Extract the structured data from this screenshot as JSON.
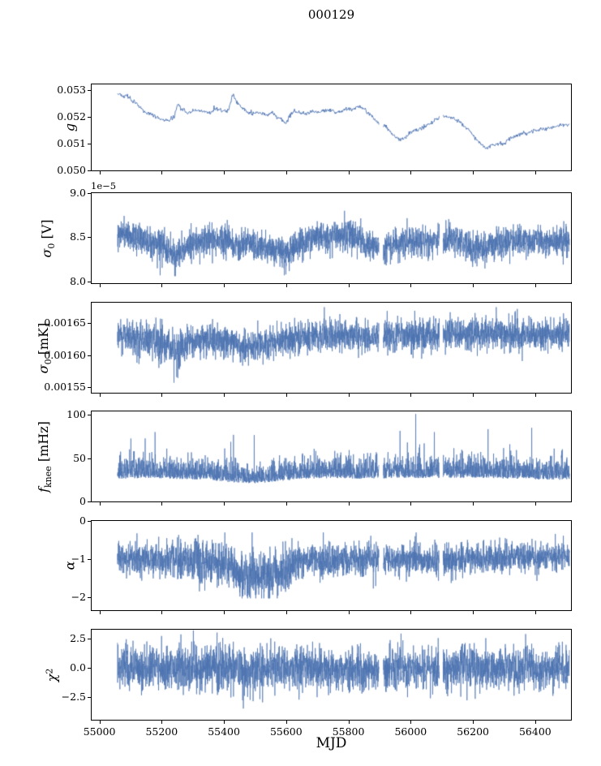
{
  "title": "000129",
  "xlabel": "MJD",
  "chart_data": {
    "type": "line",
    "line_color": "#4c72b0",
    "x_range": [
      54975,
      56515
    ],
    "x_data_range": [
      55058,
      56510
    ],
    "x_ticks": [
      55000,
      55200,
      55400,
      55600,
      55800,
      56000,
      56200,
      56400
    ],
    "x_tick_labels": [
      "55000",
      "55200",
      "55400",
      "55600",
      "55800",
      "56000",
      "56200",
      "56400"
    ],
    "gaps": [
      [
        55898,
        55912
      ],
      [
        56092,
        56104
      ]
    ],
    "panels": [
      {
        "id": "g",
        "ylabel": "g",
        "ylabel_parts": [
          {
            "t": "g",
            "style": "ital"
          }
        ],
        "ylim": [
          0.05,
          0.0532
        ],
        "yticks": [
          "0.050",
          "0.051",
          "0.052",
          "0.053"
        ],
        "ytick_values": [
          0.05,
          0.051,
          0.052,
          0.053
        ],
        "offset_text": "",
        "points": 900,
        "line_width": 0.9,
        "dist": "normal",
        "trend": {
          "x": [
            55060,
            55075,
            55090,
            55105,
            55120,
            55135,
            55150,
            55165,
            55180,
            55200,
            55220,
            55240,
            55252,
            55265,
            55280,
            55300,
            55320,
            55340,
            55355,
            55370,
            55385,
            55400,
            55415,
            55428,
            55438,
            55450,
            55465,
            55480,
            55500,
            55520,
            55540,
            55555,
            55570,
            55585,
            55600,
            55612,
            55625,
            55640,
            55660,
            55680,
            55700,
            55720,
            55740,
            55760,
            55780,
            55800,
            55815,
            55830,
            55845,
            55860,
            55880,
            55900,
            55920,
            55940,
            55955,
            55970,
            55985,
            56000,
            56015,
            56030,
            56045,
            56060,
            56080,
            56100,
            56120,
            56140,
            56160,
            56180,
            56200,
            56215,
            56230,
            56245,
            56260,
            56280,
            56300,
            56320,
            56340,
            56360,
            56375,
            56390,
            56410,
            56430,
            56450,
            56470,
            56490,
            56510
          ],
          "y": [
            0.05285,
            0.05275,
            0.0528,
            0.0526,
            0.05245,
            0.0523,
            0.05215,
            0.0521,
            0.052,
            0.0519,
            0.05185,
            0.05195,
            0.0525,
            0.0523,
            0.05215,
            0.0522,
            0.05225,
            0.0522,
            0.05215,
            0.0523,
            0.05225,
            0.0522,
            0.05225,
            0.05285,
            0.0526,
            0.0524,
            0.05225,
            0.05215,
            0.05215,
            0.0521,
            0.05205,
            0.05215,
            0.052,
            0.0519,
            0.05175,
            0.05205,
            0.0522,
            0.05215,
            0.0521,
            0.0522,
            0.05215,
            0.0522,
            0.05225,
            0.05215,
            0.0522,
            0.0523,
            0.05225,
            0.0524,
            0.05235,
            0.05215,
            0.05195,
            0.05175,
            0.05165,
            0.05135,
            0.0512,
            0.05115,
            0.05125,
            0.0514,
            0.0515,
            0.05155,
            0.05165,
            0.0517,
            0.0519,
            0.052,
            0.052,
            0.0519,
            0.0518,
            0.0516,
            0.0513,
            0.0511,
            0.05095,
            0.05085,
            0.0509,
            0.051,
            0.051,
            0.0512,
            0.0513,
            0.0514,
            0.05135,
            0.05145,
            0.0515,
            0.05155,
            0.0516,
            0.05165,
            0.0517,
            0.0517
          ]
        },
        "amp": {
          "x": [
            55060,
            56510
          ],
          "y": [
            4e-05,
            4e-05
          ]
        },
        "clip": [
          0.0503,
          0.05295
        ]
      },
      {
        "id": "sigma0-V",
        "ylabel": "σ₀ [V]",
        "ylabel_parts": [
          {
            "t": "σ",
            "style": "ital"
          },
          {
            "t": "0",
            "style": "sub"
          },
          {
            "t": " [V]"
          }
        ],
        "ylim": [
          7.98,
          9.0
        ],
        "yticks": [
          "8.0",
          "8.5",
          "9.0"
        ],
        "ytick_values": [
          8.0,
          8.5,
          9.0
        ],
        "offset_text": "1e−5",
        "points": 3200,
        "line_width": 0.7,
        "dist": "normal",
        "trend": {
          "x": [
            55060,
            55100,
            55150,
            55200,
            55240,
            55270,
            55320,
            55400,
            55430,
            55480,
            55550,
            55600,
            55650,
            55700,
            55750,
            55800,
            55850,
            55900,
            55950,
            56000,
            56050,
            56100,
            56150,
            56200,
            56250,
            56300,
            56350,
            56400,
            56450,
            56510
          ],
          "y": [
            8.56,
            8.5,
            8.45,
            8.42,
            8.3,
            8.36,
            8.45,
            8.47,
            8.42,
            8.45,
            8.36,
            8.33,
            8.42,
            8.5,
            8.53,
            8.5,
            8.45,
            8.38,
            8.42,
            8.45,
            8.45,
            8.46,
            8.49,
            8.35,
            8.39,
            8.45,
            8.44,
            8.46,
            8.45,
            8.45
          ]
        },
        "amp": {
          "x": [
            55060,
            56510
          ],
          "y": [
            0.085,
            0.085
          ]
        },
        "spike": {
          "p": 0.0025,
          "lo": -0.33,
          "hi": -0.12
        },
        "clip": [
          8.06,
          8.8
        ]
      },
      {
        "id": "sigma0-mK",
        "ylabel": "σ₀ [mK]",
        "ylabel_parts": [
          {
            "t": "σ",
            "style": "ital"
          },
          {
            "t": "0",
            "style": "sub"
          },
          {
            "t": " [mK]"
          }
        ],
        "ylim": [
          0.001541,
          0.001682
        ],
        "yticks": [
          "0.00155",
          "0.00160",
          "0.00165"
        ],
        "ytick_values": [
          0.00155,
          0.0016,
          0.00165
        ],
        "offset_text": "",
        "points": 3200,
        "line_width": 0.7,
        "dist": "normal",
        "trend": {
          "x": [
            55060,
            55150,
            55230,
            55255,
            55290,
            55420,
            55450,
            55550,
            55650,
            55800,
            55900,
            56000,
            56100,
            56200,
            56300,
            56400,
            56510
          ],
          "y": [
            0.00163,
            0.001624,
            0.001612,
            0.001603,
            0.001622,
            0.001624,
            0.001614,
            0.001618,
            0.001628,
            0.001631,
            0.001628,
            0.001631,
            0.001632,
            0.001634,
            0.001633,
            0.001633,
            0.001634
          ]
        },
        "amp": {
          "x": [
            55060,
            55230,
            55255,
            55285,
            55420,
            56300,
            56510
          ],
          "y": [
            1.15e-05,
            1.6e-05,
            2.1e-05,
            1.15e-05,
            1.15e-05,
            1.25e-05,
            1.3e-05
          ]
        },
        "spike": {
          "p": 0.003,
          "lo": -5.5e-05,
          "hi": 3e-05
        },
        "clip": [
          0.001553,
          0.001675
        ]
      },
      {
        "id": "fknee",
        "ylabel": "fₖₙₑₑ [mHz]",
        "ylabel_parts": [
          {
            "t": "f",
            "style": "ital"
          },
          {
            "t": "knee",
            "style": "sub"
          },
          {
            "t": " [mHz]"
          }
        ],
        "ylim": [
          0,
          104
        ],
        "yticks": [
          "0",
          "50",
          "100"
        ],
        "ytick_values": [
          0,
          50,
          100
        ],
        "offset_text": "",
        "points": 3200,
        "line_width": 0.7,
        "dist": "halfup",
        "trend": {
          "x": [
            55060,
            55150,
            55250,
            55350,
            55420,
            55500,
            55560,
            55650,
            55750,
            55850,
            55950,
            56050,
            56150,
            56250,
            56350,
            56450,
            56510
          ],
          "y": [
            26,
            27,
            26,
            25,
            22,
            21,
            23,
            26,
            27,
            26,
            27,
            27,
            27,
            27,
            26,
            25,
            25
          ]
        },
        "amp": {
          "x": [
            55060,
            55200,
            55400,
            55500,
            55650,
            55800,
            55900,
            56000,
            56200,
            56400,
            56510
          ],
          "y": [
            13,
            12,
            10,
            9,
            12,
            13,
            11,
            12,
            13,
            12,
            12
          ]
        },
        "spike": {
          "p": 0.005,
          "lo": 12,
          "hi": 55
        },
        "clip": [
          19,
          101
        ]
      },
      {
        "id": "alpha",
        "ylabel": "α",
        "ylabel_parts": [
          {
            "t": "α",
            "style": "ital"
          }
        ],
        "ylim": [
          -2.33,
          0
        ],
        "yticks": [
          "−2",
          "−1",
          "0"
        ],
        "ytick_values": [
          -2,
          -1,
          0
        ],
        "offset_text": "",
        "points": 3200,
        "line_width": 0.7,
        "dist": "normal",
        "trend": {
          "x": [
            55060,
            55150,
            55250,
            55300,
            55340,
            55420,
            55435,
            55460,
            55520,
            55560,
            55600,
            55630,
            55660,
            55700,
            55800,
            55900,
            56000,
            56100,
            56200,
            56300,
            56400,
            56510
          ],
          "y": [
            -1.0,
            -1.02,
            -1.0,
            -1.05,
            -1.1,
            -1.12,
            -1.3,
            -1.42,
            -1.45,
            -1.38,
            -1.3,
            -1.1,
            -1.02,
            -1.05,
            -1.0,
            -1.02,
            -1.0,
            -1.0,
            -0.98,
            -0.95,
            -0.92,
            -0.9
          ]
        },
        "amp": {
          "x": [
            55060,
            55280,
            55320,
            55420,
            55600,
            55650,
            56000,
            56510
          ],
          "y": [
            0.2,
            0.22,
            0.3,
            0.3,
            0.3,
            0.22,
            0.2,
            0.18
          ]
        },
        "spike": {
          "p": 0.002,
          "lo": -0.55,
          "hi": -0.2
        },
        "clip": [
          -2.02,
          -0.3
        ]
      },
      {
        "id": "chi2",
        "ylabel": "χ²",
        "ylabel_parts": [
          {
            "t": "χ",
            "style": "ital"
          },
          {
            "t": "2",
            "style": "sup"
          }
        ],
        "ylim": [
          -4.4,
          3.25
        ],
        "yticks": [
          "−2.5",
          "0.0",
          "2.5"
        ],
        "ytick_values": [
          -2.5,
          0,
          2.5
        ],
        "offset_text": "",
        "points": 3200,
        "line_width": 0.7,
        "dist": "normal",
        "trend": {
          "x": [
            55060,
            56510
          ],
          "y": [
            0,
            0
          ]
        },
        "amp": {
          "x": [
            55060,
            55350,
            55450,
            55600,
            56000,
            56510
          ],
          "y": [
            0.92,
            0.98,
            1.05,
            0.92,
            0.9,
            0.9
          ]
        },
        "spike": {
          "p": 0.004,
          "lo": -2.0,
          "hi": 1.6
        },
        "clip": [
          -3.45,
          3.2
        ]
      }
    ]
  }
}
